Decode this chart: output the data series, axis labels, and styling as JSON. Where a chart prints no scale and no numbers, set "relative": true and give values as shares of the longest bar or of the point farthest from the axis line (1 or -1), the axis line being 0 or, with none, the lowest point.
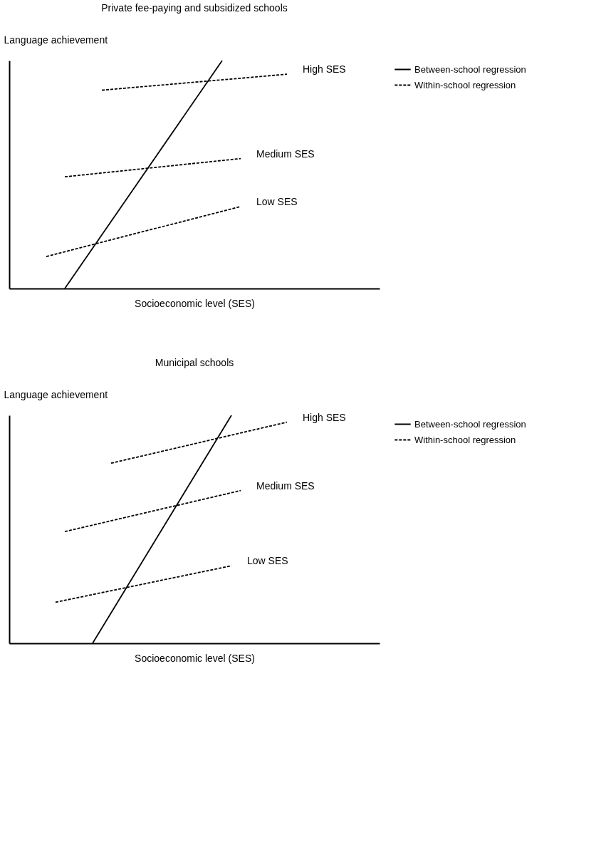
{
  "chart_data": [
    {
      "type": "line",
      "title": "Private fee-paying and subsidized schools",
      "xlabel": "Socioeconomic level (SES)",
      "ylabel": "Language achievement",
      "relative": true,
      "tick_labels": false,
      "legend": "right",
      "grid": false,
      "categories": [
        null,
        null,
        null,
        null,
        null,
        null,
        null,
        null,
        null,
        null,
        null,
        null,
        null,
        null,
        null,
        null,
        null,
        null,
        null,
        null,
        null,
        null,
        null,
        null,
        null,
        null,
        null,
        null,
        null,
        null,
        null,
        null,
        null,
        null,
        null,
        null,
        null,
        null,
        null,
        null,
        null
      ],
      "series": [
        {
          "name": "Between-school regression",
          "color": "#000000",
          "line_style": "solid",
          "values": [
            null,
            null,
            null,
            null,
            null,
            null,
            0,
            null,
            null,
            null,
            null,
            null,
            null,
            null,
            null,
            null,
            null,
            null,
            null,
            null,
            null,
            null,
            null,
            1,
            null,
            null,
            null,
            null,
            null,
            null,
            null,
            null,
            null,
            null,
            null,
            null,
            null,
            null,
            null,
            null,
            null
          ]
        },
        {
          "name": "Within-school regression",
          "color": "#000000",
          "line_style": "dashed",
          "values": [
            null,
            null,
            null,
            null,
            null,
            null,
            null,
            null,
            null,
            null,
            0.87,
            null,
            null,
            null,
            null,
            null,
            null,
            null,
            null,
            null,
            null,
            null,
            null,
            null,
            null,
            null,
            null,
            null,
            null,
            null,
            0.94,
            null,
            null,
            null,
            null,
            null,
            null,
            null,
            null,
            null,
            null
          ]
        },
        {
          "color": "#000000",
          "line_style": "dashed",
          "values": [
            null,
            null,
            null,
            null,
            null,
            null,
            0.49,
            null,
            null,
            null,
            null,
            null,
            null,
            null,
            null,
            null,
            null,
            null,
            null,
            null,
            null,
            null,
            null,
            null,
            null,
            0.57,
            null,
            null,
            null,
            null,
            null,
            null,
            null,
            null,
            null,
            null,
            null,
            null,
            null,
            null,
            null
          ]
        },
        {
          "color": "#000000",
          "line_style": "dashed",
          "values": [
            null,
            null,
            null,
            null,
            0.14,
            null,
            null,
            null,
            null,
            null,
            null,
            null,
            null,
            null,
            null,
            null,
            null,
            null,
            null,
            null,
            null,
            null,
            null,
            null,
            null,
            0.36,
            null,
            null,
            null,
            null,
            null,
            null,
            null,
            null,
            null,
            null,
            null,
            null,
            null,
            null,
            null
          ]
        }
      ],
      "annotations": [
        "High SES",
        "Medium SES",
        "Low SES"
      ]
    },
    {
      "type": "line",
      "title": "Municipal schools",
      "xlabel": "Socioeconomic level (SES)",
      "ylabel": "Language achievement",
      "relative": true,
      "tick_labels": false,
      "legend": "right",
      "grid": false,
      "categories": [
        null,
        null,
        null,
        null,
        null,
        null,
        null,
        null,
        null,
        null,
        null,
        null,
        null,
        null,
        null,
        null,
        null,
        null,
        null,
        null,
        null,
        null,
        null,
        null,
        null,
        null,
        null,
        null,
        null,
        null,
        null,
        null,
        null,
        null,
        null,
        null,
        null,
        null,
        null,
        null,
        null
      ],
      "series": [
        {
          "name": "Between-school regression",
          "color": "#000000",
          "line_style": "solid",
          "values": [
            null,
            null,
            null,
            null,
            null,
            null,
            null,
            null,
            null,
            0,
            null,
            null,
            null,
            null,
            null,
            null,
            null,
            null,
            null,
            null,
            null,
            null,
            null,
            null,
            1,
            null,
            null,
            null,
            null,
            null,
            null,
            null,
            null,
            null,
            null,
            null,
            null,
            null,
            null,
            null,
            null
          ]
        },
        {
          "name": "Within-school regression",
          "color": "#000000",
          "line_style": "dashed",
          "values": [
            null,
            null,
            null,
            null,
            null,
            null,
            null,
            null,
            null,
            null,
            null,
            0.79,
            null,
            null,
            null,
            null,
            null,
            null,
            null,
            null,
            null,
            null,
            null,
            null,
            null,
            null,
            null,
            null,
            null,
            null,
            0.97,
            null,
            null,
            null,
            null,
            null,
            null,
            null,
            null,
            null,
            null
          ]
        },
        {
          "color": "#000000",
          "line_style": "dashed",
          "values": [
            null,
            null,
            null,
            null,
            null,
            null,
            0.49,
            null,
            null,
            null,
            null,
            null,
            null,
            null,
            null,
            null,
            null,
            null,
            null,
            null,
            null,
            null,
            null,
            null,
            null,
            0.67,
            null,
            null,
            null,
            null,
            null,
            null,
            null,
            null,
            null,
            null,
            null,
            null,
            null,
            null,
            null
          ]
        },
        {
          "color": "#000000",
          "line_style": "dashed",
          "values": [
            null,
            null,
            null,
            null,
            null,
            0.18,
            null,
            null,
            null,
            null,
            null,
            null,
            null,
            null,
            null,
            null,
            null,
            null,
            null,
            null,
            null,
            null,
            null,
            null,
            0.34,
            null,
            null,
            null,
            null,
            null,
            null,
            null,
            null,
            null,
            null,
            null,
            null,
            null,
            null,
            null,
            null
          ]
        }
      ],
      "annotations": [
        "High SES",
        "Medium SES",
        "Low SES"
      ]
    }
  ]
}
